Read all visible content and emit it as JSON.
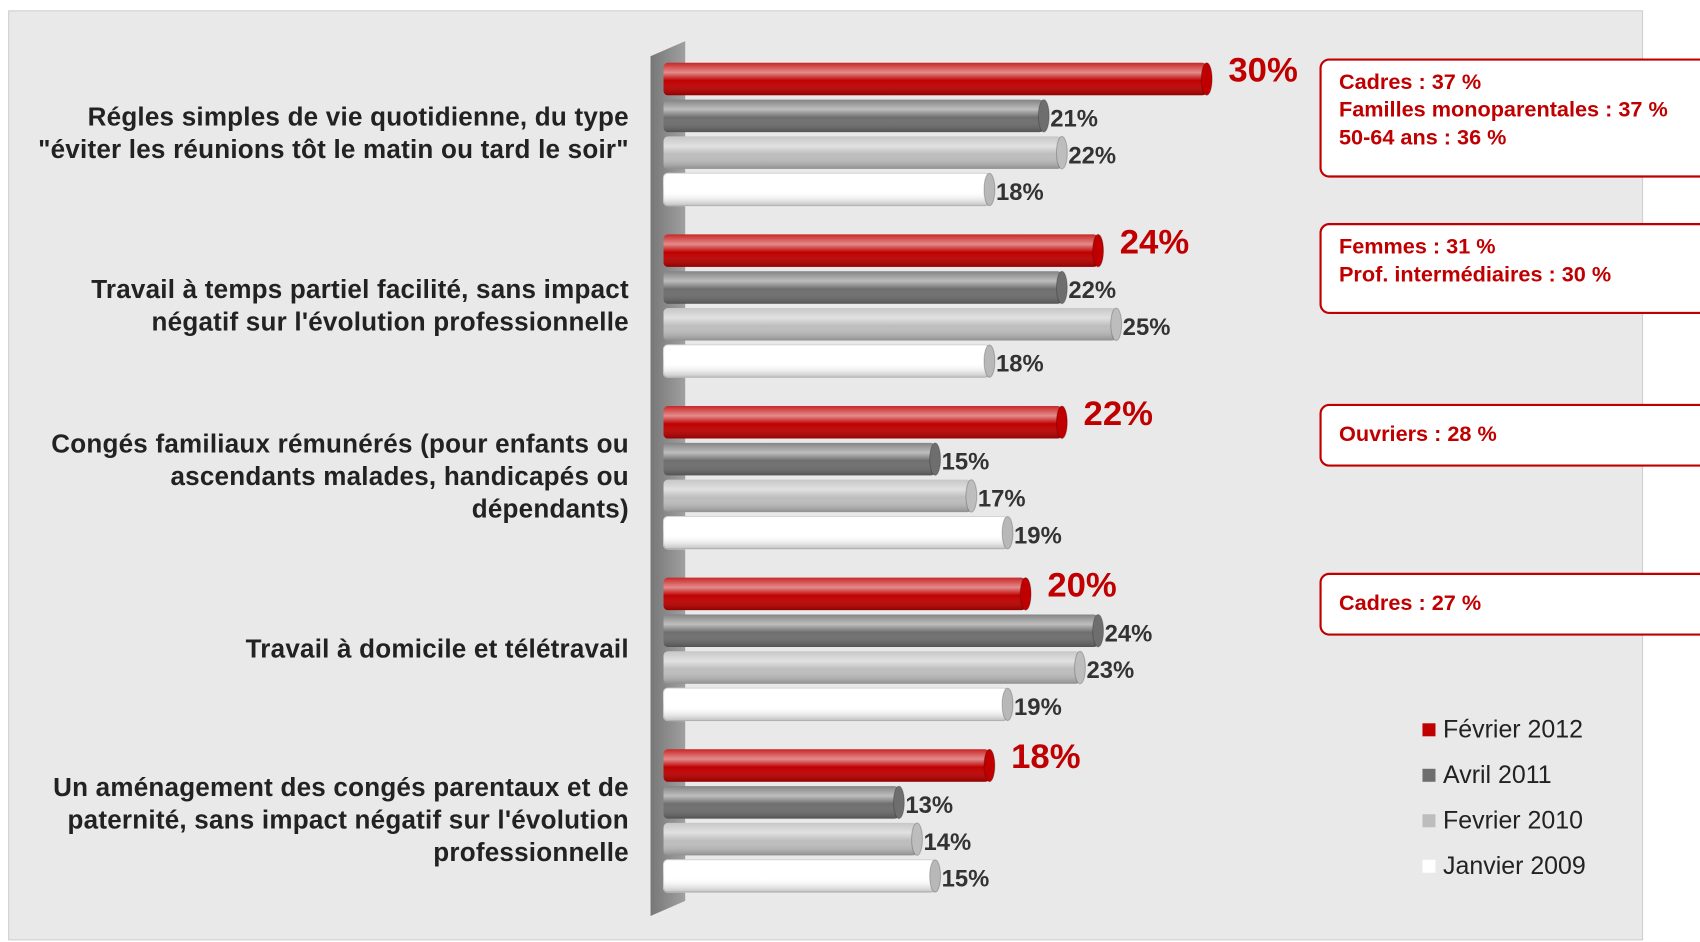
{
  "chart_data": {
    "type": "bar",
    "orientation": "horizontal",
    "categories": [
      "Régles simples de vie quotidienne, du type \"éviter les réunions tôt le matin ou tard le soir\"",
      "Travail à temps partiel facilité, sans impact négatif sur l'évolution professionnelle",
      "Congés familiaux rémunérés (pour enfants ou ascendants malades, handicapés ou dépendants)",
      "Travail à domicile et télétravail",
      "Un aménagement des congés parentaux et de paternité, sans impact négatif sur l'évolution professionnelle"
    ],
    "series": [
      {
        "name": "Février 2012",
        "color": "#c00000",
        "values": [
          30,
          24,
          22,
          20,
          18
        ],
        "value_labels": [
          "30%",
          "24%",
          "22%",
          "20%",
          "18%"
        ]
      },
      {
        "name": "Avril 2011",
        "color": "#6e6e6e",
        "values": [
          21,
          22,
          15,
          24,
          13
        ],
        "value_labels": [
          "21%",
          "22%",
          "15%",
          "24%",
          "13%"
        ]
      },
      {
        "name": "Fevrier 2010",
        "color": "#bdbdbd",
        "values": [
          22,
          25,
          17,
          23,
          14
        ],
        "value_labels": [
          "22%",
          "25%",
          "17%",
          "23%",
          "14%"
        ]
      },
      {
        "name": "Janvier 2009",
        "color": "#ffffff",
        "values": [
          18,
          18,
          19,
          19,
          15
        ],
        "value_labels": [
          "18%",
          "18%",
          "19%",
          "19%",
          "15%"
        ]
      }
    ],
    "xlim": [
      0,
      30
    ],
    "annotations": [
      [
        "Cadres : 37 %",
        "Familles monoparentales : 37 %",
        "50-64 ans : 36 %"
      ],
      [
        "Femmes : 31 %",
        "Prof. intermédiaires : 30 %"
      ],
      [
        "Ouvriers  : 28 %"
      ],
      [
        "Cadres : 27 %"
      ]
    ]
  }
}
